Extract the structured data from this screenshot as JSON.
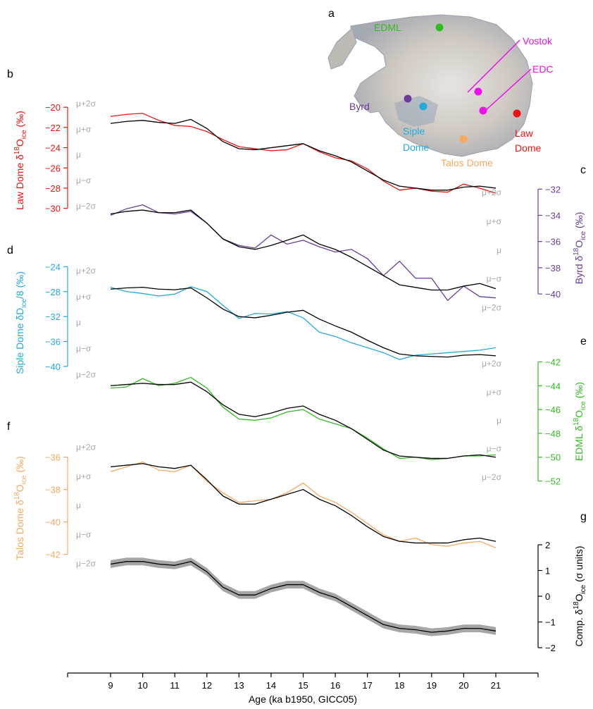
{
  "figure": {
    "panel_letters": {
      "a": "a",
      "b": "b",
      "c": "c",
      "d": "d",
      "e": "e",
      "f": "f",
      "g": "g"
    },
    "xaxis": {
      "label": "Age (ka b1950, GICC05)",
      "ticks": [
        9,
        10,
        11,
        12,
        13,
        14,
        15,
        16,
        17,
        18,
        19,
        20,
        21
      ],
      "tick_labels": [
        "9",
        "10",
        "11",
        "12",
        "13",
        "14",
        "15",
        "16",
        "17",
        "18",
        "19",
        "20",
        "21"
      ]
    },
    "sigma_labels": [
      "μ+2σ",
      "μ+σ",
      "μ",
      "μ−σ",
      "μ−2σ"
    ],
    "map": {
      "sites": [
        {
          "name": "EDML",
          "color": "#33bb22"
        },
        {
          "name": "Vostok",
          "color": "#ee11ee"
        },
        {
          "name": "EDC",
          "color": "#ee11ee"
        },
        {
          "name": "Byrd",
          "color": "#6a3d9a"
        },
        {
          "name": "Siple Dome",
          "color": "#22aadd"
        },
        {
          "name": "Law Dome",
          "color": "#ee1111"
        },
        {
          "name": "Talos Dome",
          "color": "#f5a962"
        }
      ]
    },
    "colors": {
      "law": "#ee1111",
      "byrd": "#6a3d9a",
      "siple": "#22aadd",
      "edml": "#33bb22",
      "talos": "#f5a962",
      "comp": "#000000",
      "band": "#a6a6a6",
      "sigma": "#a8a8a8"
    }
  },
  "chart_data": [
    {
      "type": "line",
      "panel": "b",
      "axis_side": "left",
      "ylabel": {
        "site": "Law Dome",
        "pre": "δ",
        "sup": "18",
        "main": "O",
        "sub": "ice",
        "unit": " (‰)"
      },
      "ylim": [
        -31,
        -19.5
      ],
      "yticks": [
        -20,
        -22,
        -24,
        -26,
        -28,
        -30
      ],
      "ytick_labels": [
        "−20",
        "−22",
        "−24",
        "−26",
        "−28",
        "−30"
      ],
      "series": [
        {
          "role": "record",
          "x": [
            9.0,
            9.5,
            10.0,
            10.5,
            11.0,
            11.5,
            12.0,
            12.5,
            13.0,
            13.5,
            14.0,
            14.5,
            15.0,
            15.5,
            16.0,
            16.5,
            17.0,
            17.5,
            18.0,
            18.5,
            19.0,
            19.5,
            20.0,
            20.5,
            21.0
          ],
          "y": [
            -20.9,
            -20.7,
            -20.6,
            -21.3,
            -21.8,
            -21.9,
            -22.4,
            -23.2,
            -23.9,
            -24.1,
            -24.3,
            -24.2,
            -23.6,
            -24.4,
            -25.0,
            -25.3,
            -26.1,
            -27.3,
            -28.2,
            -28.0,
            -28.3,
            -28.4,
            -27.6,
            -28.0,
            -28.5
          ]
        },
        {
          "role": "composite",
          "x": [
            9.0,
            9.5,
            10.0,
            10.5,
            11.0,
            11.5,
            12.0,
            12.5,
            13.0,
            13.5,
            14.0,
            14.5,
            15.0,
            15.5,
            16.0,
            16.5,
            17.0,
            17.5,
            18.0,
            18.5,
            19.0,
            19.5,
            20.0,
            20.5,
            21.0
          ],
          "y": [
            -21.6,
            -21.4,
            -21.3,
            -21.5,
            -21.6,
            -21.2,
            -22.1,
            -23.4,
            -24.1,
            -24.2,
            -24.0,
            -23.8,
            -23.6,
            -24.3,
            -24.8,
            -25.4,
            -26.3,
            -27.2,
            -27.8,
            -28.0,
            -28.2,
            -28.2,
            -27.9,
            -27.8,
            -28.0
          ]
        }
      ]
    },
    {
      "type": "line",
      "panel": "c",
      "axis_side": "right",
      "ylabel": {
        "site": "Byrd",
        "pre": "δ",
        "sup": "18",
        "main": "O",
        "sub": "ice",
        "unit": " (‰)"
      },
      "ylim": [
        -41.5,
        -31.5
      ],
      "yticks": [
        -32,
        -34,
        -36,
        -38,
        -40
      ],
      "ytick_labels": [
        "−32",
        "−34",
        "−36",
        "−38",
        "−40"
      ],
      "series": [
        {
          "role": "record",
          "x": [
            9.0,
            9.5,
            10.0,
            10.5,
            11.0,
            11.5,
            12.0,
            12.5,
            13.0,
            13.5,
            14.0,
            14.5,
            15.0,
            15.5,
            16.0,
            16.5,
            17.0,
            17.5,
            18.0,
            18.5,
            19.0,
            19.5,
            20.0,
            20.5,
            21.0
          ],
          "y": [
            -34.0,
            -33.5,
            -33.2,
            -33.8,
            -33.9,
            -33.7,
            -34.6,
            -35.8,
            -36.3,
            -36.5,
            -35.5,
            -36.2,
            -35.9,
            -36.4,
            -36.8,
            -36.6,
            -37.3,
            -38.6,
            -37.5,
            -38.8,
            -38.8,
            -40.5,
            -39.4,
            -40.2,
            -40.3
          ]
        },
        {
          "role": "composite",
          "x": [
            9.0,
            9.5,
            10.0,
            10.5,
            11.0,
            11.5,
            12.0,
            12.5,
            13.0,
            13.5,
            14.0,
            14.5,
            15.0,
            15.5,
            16.0,
            16.5,
            17.0,
            17.5,
            18.0,
            18.5,
            19.0,
            19.5,
            20.0,
            20.5,
            21.0
          ],
          "y": [
            -33.9,
            -33.7,
            -33.6,
            -33.8,
            -33.8,
            -33.6,
            -34.6,
            -35.8,
            -36.4,
            -36.6,
            -36.3,
            -35.9,
            -35.5,
            -36.2,
            -36.6,
            -37.2,
            -37.9,
            -38.6,
            -39.3,
            -39.5,
            -39.7,
            -39.7,
            -39.4,
            -39.2,
            -39.6
          ]
        }
      ]
    },
    {
      "type": "line",
      "panel": "d",
      "axis_side": "left",
      "ylabel": {
        "site": "Siple Dome",
        "pre": "δD",
        "sup": "",
        "main": "",
        "sub": "ice",
        "unit": "/8 (‰)"
      },
      "ylim": [
        -42.5,
        -23.5
      ],
      "yticks": [
        -24,
        -28,
        -32,
        -36,
        -40
      ],
      "ytick_labels": [
        "−24",
        "−28",
        "−32",
        "−36",
        "−40"
      ],
      "series": [
        {
          "role": "record",
          "x": [
            9.0,
            9.5,
            10.0,
            10.5,
            11.0,
            11.5,
            12.0,
            12.5,
            13.0,
            13.5,
            14.0,
            14.5,
            15.0,
            15.5,
            16.0,
            16.5,
            17.0,
            17.5,
            18.0,
            18.5,
            19.0,
            19.5,
            20.0,
            20.5,
            21.0
          ],
          "y": [
            -27.3,
            -28.0,
            -28.3,
            -28.7,
            -28.4,
            -27.2,
            -28.0,
            -30.2,
            -32.3,
            -31.5,
            -31.6,
            -31.2,
            -32.2,
            -34.5,
            -35.2,
            -36.2,
            -37.0,
            -37.8,
            -38.9,
            -38.2,
            -38.0,
            -37.8,
            -37.6,
            -37.4,
            -37.0
          ]
        },
        {
          "role": "composite",
          "x": [
            9.0,
            9.5,
            10.0,
            10.5,
            11.0,
            11.5,
            12.0,
            12.5,
            13.0,
            13.5,
            14.0,
            14.5,
            15.0,
            15.5,
            16.0,
            16.5,
            17.0,
            17.5,
            18.0,
            18.5,
            19.0,
            19.5,
            20.0,
            20.5,
            21.0
          ],
          "y": [
            -27.6,
            -27.4,
            -27.3,
            -27.6,
            -27.7,
            -27.4,
            -29.0,
            -30.8,
            -32.0,
            -32.2,
            -31.8,
            -31.3,
            -31.0,
            -32.4,
            -33.5,
            -34.5,
            -35.8,
            -37.0,
            -38.0,
            -38.3,
            -38.4,
            -38.5,
            -38.2,
            -38.1,
            -38.3
          ]
        }
      ]
    },
    {
      "type": "line",
      "panel": "e",
      "axis_side": "right",
      "ylabel": {
        "site": "EDML",
        "pre": "δ",
        "sup": "18",
        "main": "O",
        "sub": "ice",
        "unit": " (‰)"
      },
      "ylim": [
        -52.5,
        -41.5
      ],
      "yticks": [
        -42,
        -44,
        -46,
        -48,
        -50,
        -52
      ],
      "ytick_labels": [
        "−42",
        "−44",
        "−46",
        "−48",
        "−50",
        "−52"
      ],
      "series": [
        {
          "role": "record",
          "x": [
            9.0,
            9.5,
            10.0,
            10.5,
            11.0,
            11.5,
            12.0,
            12.5,
            13.0,
            13.5,
            14.0,
            14.5,
            15.0,
            15.5,
            16.0,
            16.5,
            17.0,
            17.5,
            18.0,
            18.5,
            19.0,
            19.5,
            20.0,
            20.5,
            21.0
          ],
          "y": [
            -44.2,
            -44.1,
            -43.4,
            -44.0,
            -43.8,
            -43.3,
            -44.2,
            -45.8,
            -46.8,
            -46.9,
            -46.7,
            -46.2,
            -46.0,
            -46.8,
            -47.2,
            -47.6,
            -48.4,
            -49.3,
            -50.1,
            -50.0,
            -50.2,
            -50.1,
            -49.9,
            -49.9,
            -49.8
          ]
        },
        {
          "role": "composite",
          "x": [
            9.0,
            9.5,
            10.0,
            10.5,
            11.0,
            11.5,
            12.0,
            12.5,
            13.0,
            13.5,
            14.0,
            14.5,
            15.0,
            15.5,
            16.0,
            16.5,
            17.0,
            17.5,
            18.0,
            18.5,
            19.0,
            19.5,
            20.0,
            20.5,
            21.0
          ],
          "y": [
            -44.0,
            -43.9,
            -43.8,
            -43.9,
            -43.9,
            -43.7,
            -44.5,
            -45.6,
            -46.4,
            -46.6,
            -46.3,
            -45.9,
            -45.7,
            -46.4,
            -46.9,
            -47.6,
            -48.5,
            -49.4,
            -49.9,
            -50.0,
            -50.1,
            -50.1,
            -49.9,
            -49.8,
            -50.0
          ]
        }
      ]
    },
    {
      "type": "line",
      "panel": "f",
      "axis_side": "left",
      "ylabel": {
        "site": "Talos Dome",
        "pre": "δ",
        "sup": "18",
        "main": "O",
        "sub": "ice",
        "unit": " (‰)"
      },
      "ylim": [
        -43.5,
        -34.8
      ],
      "yticks": [
        -36,
        -38,
        -40,
        -42
      ],
      "ytick_labels": [
        "−36",
        "−38",
        "−40",
        "−42"
      ],
      "series": [
        {
          "role": "record",
          "x": [
            9.0,
            9.5,
            10.0,
            10.5,
            11.0,
            11.5,
            12.0,
            12.5,
            13.0,
            13.5,
            14.0,
            14.5,
            15.0,
            15.5,
            16.0,
            16.5,
            17.0,
            17.5,
            18.0,
            18.5,
            19.0,
            19.5,
            20.0,
            20.5,
            21.0
          ],
          "y": [
            -36.9,
            -36.6,
            -36.3,
            -36.8,
            -36.9,
            -36.5,
            -37.5,
            -38.2,
            -38.8,
            -38.7,
            -38.6,
            -38.2,
            -37.6,
            -38.4,
            -38.8,
            -39.4,
            -40.1,
            -40.8,
            -41.2,
            -41.0,
            -41.4,
            -41.5,
            -41.3,
            -41.2,
            -41.6
          ]
        },
        {
          "role": "composite",
          "x": [
            9.0,
            9.5,
            10.0,
            10.5,
            11.0,
            11.5,
            12.0,
            12.5,
            13.0,
            13.5,
            14.0,
            14.5,
            15.0,
            15.5,
            16.0,
            16.5,
            17.0,
            17.5,
            18.0,
            18.5,
            19.0,
            19.5,
            20.0,
            20.5,
            21.0
          ],
          "y": [
            -36.6,
            -36.5,
            -36.4,
            -36.6,
            -36.7,
            -36.5,
            -37.4,
            -38.4,
            -38.9,
            -38.9,
            -38.6,
            -38.3,
            -38.0,
            -38.6,
            -39.0,
            -39.6,
            -40.3,
            -40.9,
            -41.2,
            -41.3,
            -41.3,
            -41.3,
            -41.1,
            -41.0,
            -41.2
          ]
        }
      ]
    },
    {
      "type": "area",
      "panel": "g",
      "axis_side": "right",
      "ylabel": {
        "site": "Comp.",
        "pre": "δ",
        "sup": "18",
        "main": "O",
        "sub": "ice",
        "unit": " (σ units)"
      },
      "ylim": [
        -2.3,
        2.3
      ],
      "yticks": [
        2,
        1,
        0,
        -1,
        -2
      ],
      "ytick_labels": [
        "2",
        "1",
        "0",
        "−1",
        "−2"
      ],
      "series": [
        {
          "role": "composite",
          "x": [
            9.0,
            9.5,
            10.0,
            10.5,
            11.0,
            11.5,
            12.0,
            12.5,
            13.0,
            13.5,
            14.0,
            14.5,
            15.0,
            15.5,
            16.0,
            16.5,
            17.0,
            17.5,
            18.0,
            18.5,
            19.0,
            19.5,
            20.0,
            20.5,
            21.0
          ],
          "y": [
            1.25,
            1.35,
            1.35,
            1.25,
            1.2,
            1.35,
            0.95,
            0.35,
            0.05,
            0.05,
            0.3,
            0.45,
            0.45,
            0.15,
            -0.05,
            -0.4,
            -0.75,
            -1.1,
            -1.25,
            -1.3,
            -1.4,
            -1.35,
            -1.25,
            -1.25,
            -1.35
          ]
        },
        {
          "role": "band_halfwidth",
          "value": 0.15
        }
      ]
    }
  ]
}
